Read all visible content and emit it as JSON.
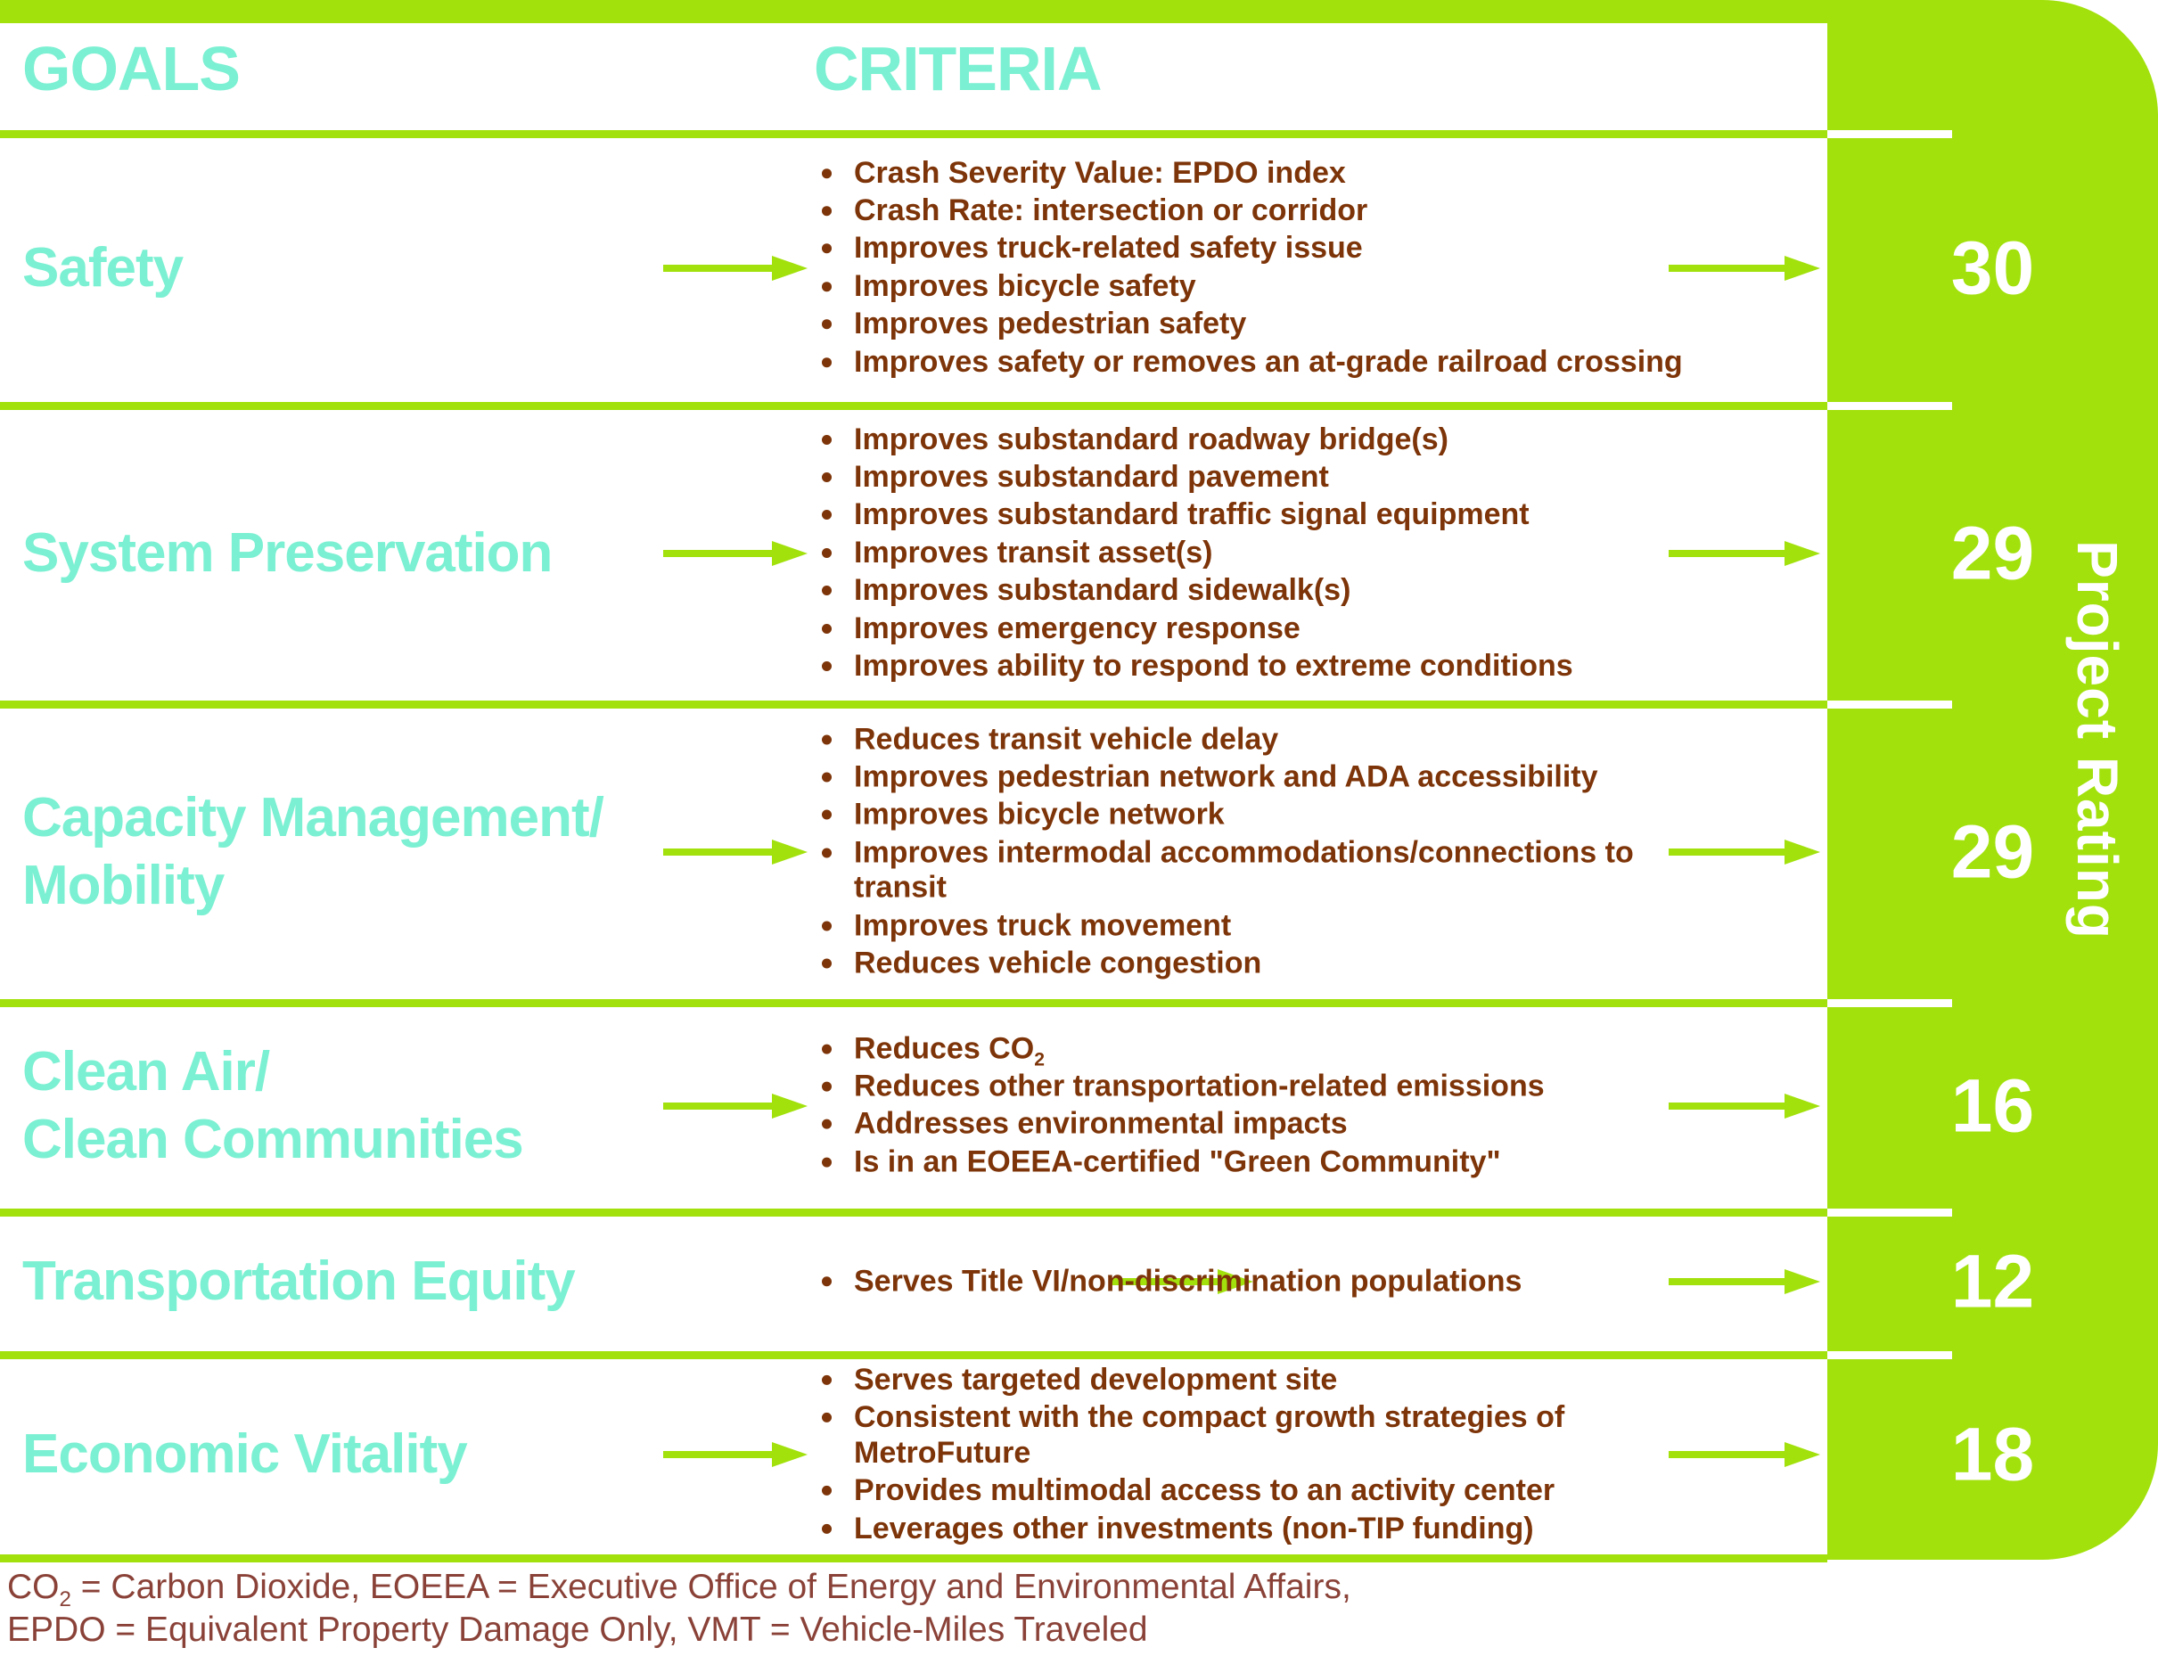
{
  "header": {
    "goals_label": "GOALS",
    "criteria_label": "CRITERIA"
  },
  "side_band": {
    "title": "Project Rating"
  },
  "colors": {
    "accent_green": "#a2e10c",
    "goal_text_aqua": "#7cf0d2",
    "criteria_brown": "#7d3408",
    "footer_brown": "#8a4238",
    "rating_text": "#ffffff"
  },
  "rows": [
    {
      "goal_lines": [
        "Safety"
      ],
      "rating": "30",
      "criteria": [
        "Crash Severity Value: EPDO index",
        "Crash Rate: intersection or corridor",
        "Improves truck-related safety issue",
        "Improves bicycle safety",
        "Improves pedestrian safety",
        "Improves safety or removes an at-grade railroad crossing"
      ]
    },
    {
      "goal_lines": [
        "System Preservation"
      ],
      "rating": "29",
      "criteria": [
        "Improves substandard roadway bridge(s)",
        "Improves substandard pavement",
        "Improves substandard traffic signal equipment",
        "Improves transit asset(s)",
        "Improves substandard sidewalk(s)",
        "Improves emergency response",
        "Improves ability to respond to extreme conditions"
      ]
    },
    {
      "goal_lines": [
        "Capacity Management/",
        "Mobility"
      ],
      "rating": "29",
      "criteria": [
        "Reduces transit vehicle delay",
        "Improves pedestrian network and ADA accessibility",
        "Improves bicycle network",
        "Improves intermodal accommodations/connections to transit",
        "Improves truck movement",
        "Reduces vehicle congestion"
      ]
    },
    {
      "goal_lines": [
        "Clean Air/",
        "Clean Communities"
      ],
      "rating": "16",
      "criteria": [
        {
          "text": "Reduces CO",
          "sub": "2"
        },
        "Reduces other transportation-related emissions",
        "Addresses environmental impacts",
        "Is in an EOEEA-certified \"Green Community\""
      ]
    },
    {
      "goal_lines": [
        "Transportation Equity"
      ],
      "rating": "12",
      "criteria": [
        "Serves Title VI/non-discrimination populations"
      ]
    },
    {
      "goal_lines": [
        "Economic Vitality"
      ],
      "rating": "18",
      "criteria": [
        "Serves targeted development site",
        "Consistent with the compact growth strategies of MetroFuture",
        "Provides multimodal access to an activity center",
        "Leverages other investments (non-TIP funding)"
      ]
    }
  ],
  "footer": {
    "line1_prefix": "CO",
    "line1_sub": "2",
    "line1_rest": " = Carbon Dioxide, EOEEA = Executive Office of Energy and Environmental Affairs,",
    "line2": "EPDO = Equivalent Property Damage Only, VMT = Vehicle-Miles Traveled"
  }
}
